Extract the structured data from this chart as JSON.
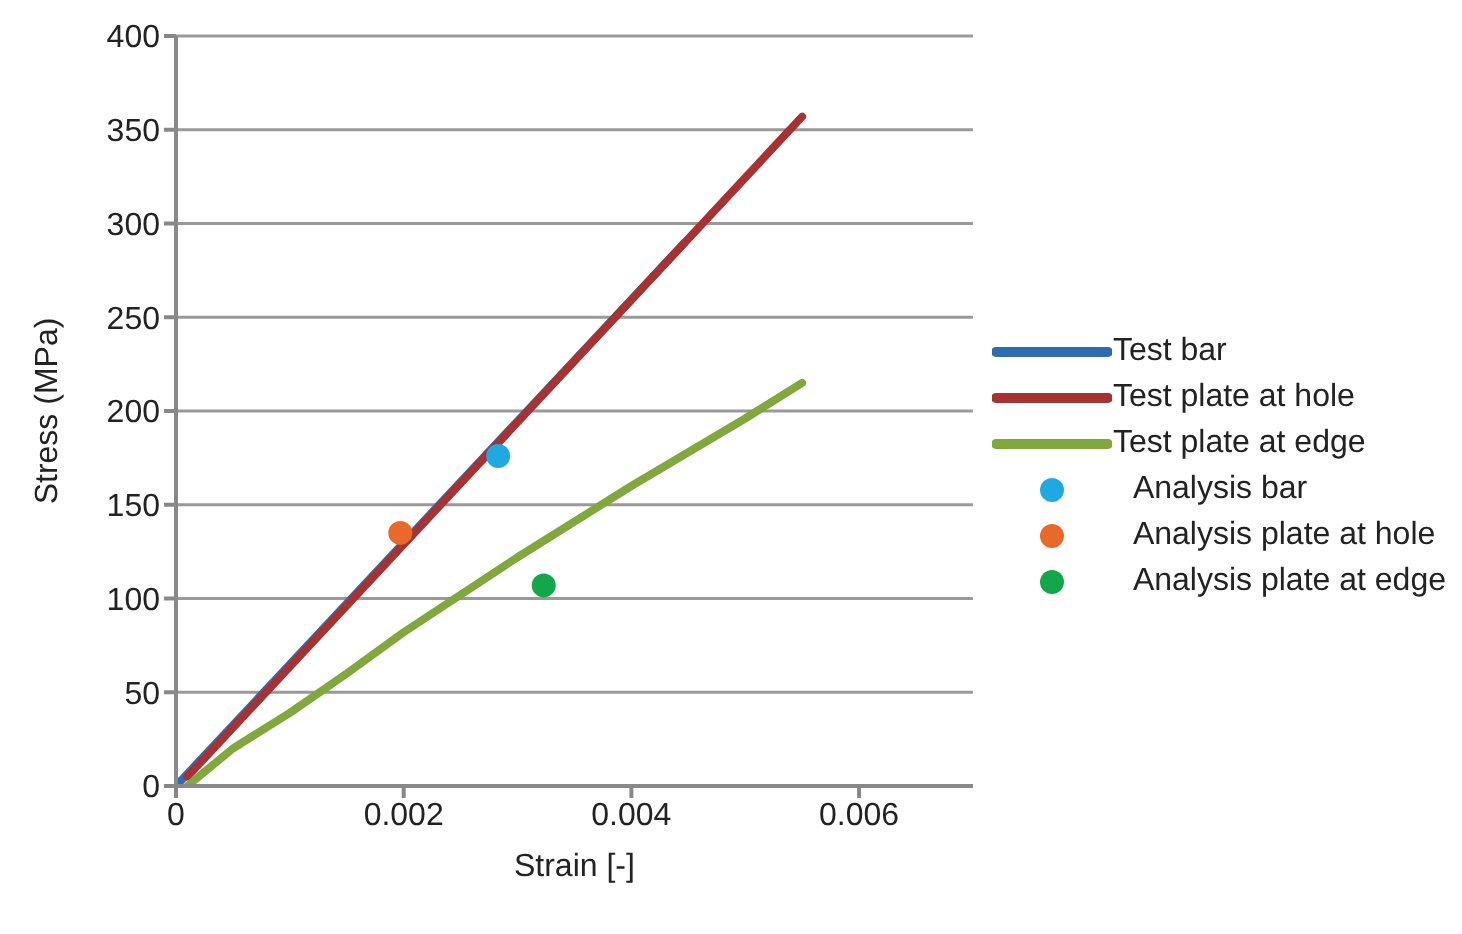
{
  "chart_data": {
    "type": "line",
    "xlabel": "Strain [-]",
    "ylabel": "Stress (MPa)",
    "xlim": [
      0,
      0.007
    ],
    "xticks": [
      0,
      0.002,
      0.004,
      0.006
    ],
    "ylim": [
      0,
      400
    ],
    "yticks": [
      0,
      50,
      100,
      150,
      200,
      250,
      300,
      350,
      400
    ],
    "grid": "y",
    "legend": "right",
    "line_style": "solid",
    "series": [
      {
        "name": "Test bar",
        "color": "#2e6bb0",
        "x": [
          0,
          0.00447
        ],
        "values": [
          0,
          290
        ],
        "marker": "none"
      },
      {
        "name": "Test plate at hole",
        "color": "#a83232",
        "x": [
          0.0001,
          0.0055
        ],
        "values": [
          5,
          357
        ],
        "marker": "none"
      },
      {
        "name": "Test plate at edge",
        "color": "#80a83c",
        "x": [
          0.0001,
          0.0005,
          0.001,
          0.0015,
          0.002,
          0.003,
          0.004,
          0.005,
          0.0055
        ],
        "values": [
          0,
          20,
          39,
          60,
          82,
          122,
          160,
          196,
          215
        ],
        "marker": "none"
      },
      {
        "name": "Analysis bar",
        "type": "scatter",
        "color": "#1fa9e0",
        "x": [
          0.00283
        ],
        "values": [
          176
        ],
        "marker": "circle"
      },
      {
        "name": "Analysis plate at hole",
        "type": "scatter",
        "color": "#e8692a",
        "x": [
          0.00197
        ],
        "values": [
          135
        ],
        "marker": "circle"
      },
      {
        "name": "Analysis plate at edge",
        "type": "scatter",
        "color": "#12a84a",
        "x": [
          0.00323
        ],
        "values": [
          107
        ],
        "marker": "circle"
      }
    ]
  }
}
